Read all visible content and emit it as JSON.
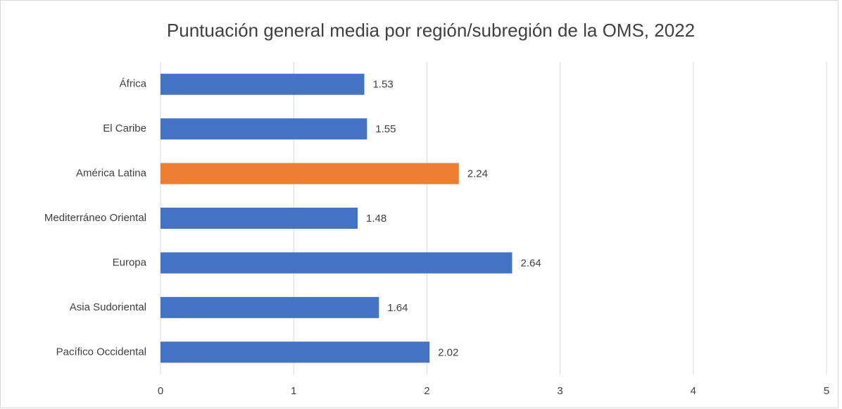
{
  "chart_data": {
    "type": "bar",
    "orientation": "horizontal",
    "title": "Puntuación general media por región/subregión de la OMS, 2022",
    "categories": [
      "África",
      "El Caribe",
      "América Latina",
      "Mediterráneo Oriental",
      "Europa",
      "Asia Sudoriental",
      "Pacífico Occidental"
    ],
    "values": [
      1.53,
      1.55,
      2.24,
      1.48,
      2.64,
      1.64,
      2.02
    ],
    "colors": [
      "#4472c4",
      "#4472c4",
      "#ed7d31",
      "#4472c4",
      "#4472c4",
      "#4472c4",
      "#4472c4"
    ],
    "xlim": [
      0,
      5
    ],
    "xticks": [
      0,
      1,
      2,
      3,
      4,
      5
    ],
    "grid": true
  }
}
